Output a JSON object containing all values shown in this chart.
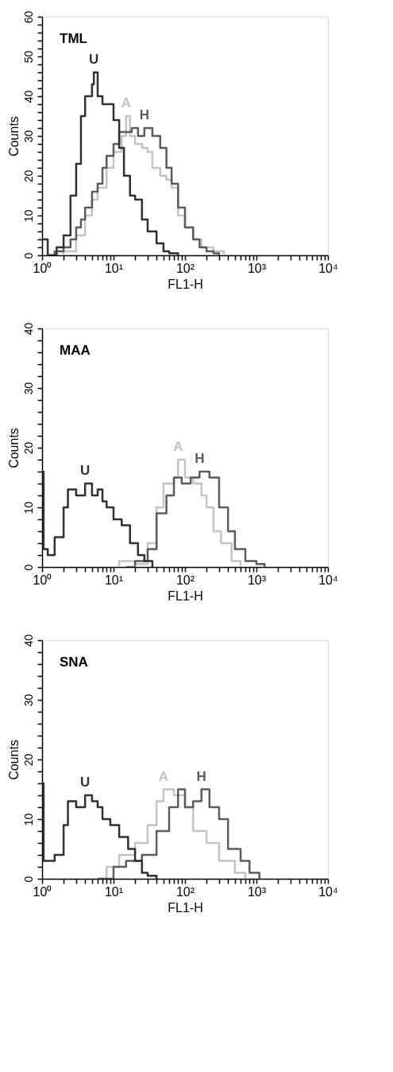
{
  "chart_data": [
    {
      "type": "step",
      "title": "TML",
      "xlabel": "FL1-H",
      "ylabel": "Counts",
      "log": "x",
      "grid": false,
      "xlim": [
        1,
        10000
      ],
      "ylim": [
        0,
        60
      ],
      "xticks": [
        {
          "value": 1,
          "label": "10⁰"
        },
        {
          "value": 2,
          "label": null
        },
        {
          "value": 3,
          "label": null
        },
        {
          "value": 4,
          "label": null
        },
        {
          "value": 5,
          "label": null
        },
        {
          "value": 6,
          "label": null
        },
        {
          "value": 7,
          "label": null
        },
        {
          "value": 8,
          "label": null
        },
        {
          "value": 9,
          "label": null
        },
        {
          "value": 10,
          "label": "10¹"
        },
        {
          "value": 20,
          "label": null
        },
        {
          "value": 30,
          "label": null
        },
        {
          "value": 40,
          "label": null
        },
        {
          "value": 50,
          "label": null
        },
        {
          "value": 60,
          "label": null
        },
        {
          "value": 70,
          "label": null
        },
        {
          "value": 80,
          "label": null
        },
        {
          "value": 90,
          "label": null
        },
        {
          "value": 100,
          "label": "10²"
        },
        {
          "value": 200,
          "label": null
        },
        {
          "value": 300,
          "label": null
        },
        {
          "value": 400,
          "label": null
        },
        {
          "value": 500,
          "label": null
        },
        {
          "value": 600,
          "label": null
        },
        {
          "value": 700,
          "label": null
        },
        {
          "value": 800,
          "label": null
        },
        {
          "value": 900,
          "label": null
        },
        {
          "value": 1000,
          "label": "10³"
        },
        {
          "value": 2000,
          "label": null
        },
        {
          "value": 3000,
          "label": null
        },
        {
          "value": 4000,
          "label": null
        },
        {
          "value": 5000,
          "label": null
        },
        {
          "value": 6000,
          "label": null
        },
        {
          "value": 7000,
          "label": null
        },
        {
          "value": 8000,
          "label": null
        },
        {
          "value": 9000,
          "label": null
        },
        {
          "value": 10000,
          "label": "10⁴"
        }
      ],
      "yticks": [
        0,
        {
          "value": 2,
          "label": null
        },
        {
          "value": 4,
          "label": null
        },
        {
          "value": 6,
          "label": null
        },
        {
          "value": 8,
          "label": null
        },
        10,
        {
          "value": 12,
          "label": null
        },
        {
          "value": 14,
          "label": null
        },
        {
          "value": 16,
          "label": null
        },
        {
          "value": 18,
          "label": null
        },
        20,
        {
          "value": 22,
          "label": null
        },
        {
          "value": 24,
          "label": null
        },
        {
          "value": 26,
          "label": null
        },
        {
          "value": 28,
          "label": null
        },
        30,
        {
          "value": 32,
          "label": null
        },
        {
          "value": 34,
          "label": null
        },
        {
          "value": 36,
          "label": null
        },
        {
          "value": 38,
          "label": null
        },
        40,
        {
          "value": 42,
          "label": null
        },
        {
          "value": 44,
          "label": null
        },
        {
          "value": 46,
          "label": null
        },
        {
          "value": 48,
          "label": null
        },
        50,
        {
          "value": 52,
          "label": null
        },
        {
          "value": 54,
          "label": null
        },
        {
          "value": 56,
          "label": null
        },
        {
          "value": 58,
          "label": null
        },
        60
      ],
      "series": [
        {
          "name": "A",
          "color": "#c4c4c4",
          "x": [
            1.5,
            2,
            3,
            4,
            5,
            6,
            8,
            10,
            13,
            15,
            17,
            20,
            25,
            30,
            35,
            45,
            55,
            65,
            80,
            100,
            130,
            170,
            250,
            350
          ],
          "values": [
            0,
            1,
            5,
            10,
            14,
            17,
            22,
            26,
            30,
            35,
            30,
            28,
            27,
            26,
            22,
            20,
            19,
            17,
            10,
            7,
            4,
            2,
            1,
            0
          ]
        },
        {
          "name": "H",
          "color": "#5c5c5c",
          "x": [
            1.2,
            1.5,
            2,
            2.5,
            3,
            3.5,
            4,
            5,
            6,
            7,
            8,
            10,
            12,
            15,
            18,
            22,
            27,
            35,
            45,
            55,
            65,
            80,
            100,
            130,
            160,
            200,
            250,
            300
          ],
          "values": [
            0,
            1,
            2,
            4,
            7,
            9,
            12,
            16,
            18,
            22,
            25,
            28,
            31,
            31,
            32,
            30,
            32,
            30,
            27,
            22,
            18,
            12,
            7,
            4,
            2,
            1,
            0.5,
            0
          ]
        },
        {
          "name": "U",
          "color": "#303030",
          "x": [
            1,
            1.2,
            1.6,
            2,
            2.5,
            3,
            3.5,
            4,
            5,
            5.3,
            6,
            7,
            8,
            10,
            12,
            14,
            17,
            20,
            25,
            30,
            40,
            50,
            60,
            80
          ],
          "values": [
            4,
            0,
            2,
            5,
            15,
            23,
            35,
            40,
            43,
            46,
            40,
            38,
            38,
            34,
            27,
            20,
            15,
            14,
            9,
            6,
            3,
            1,
            0.5,
            0
          ]
        }
      ]
    },
    {
      "type": "step",
      "title": "MAA",
      "xlabel": "FL1-H",
      "ylabel": "Counts",
      "log": "x",
      "grid": false,
      "xlim": [
        1,
        10000
      ],
      "ylim": [
        0,
        40
      ],
      "xticks": [
        {
          "value": 1,
          "label": "10⁰"
        },
        {
          "value": 2,
          "label": null
        },
        {
          "value": 3,
          "label": null
        },
        {
          "value": 4,
          "label": null
        },
        {
          "value": 5,
          "label": null
        },
        {
          "value": 6,
          "label": null
        },
        {
          "value": 7,
          "label": null
        },
        {
          "value": 8,
          "label": null
        },
        {
          "value": 9,
          "label": null
        },
        {
          "value": 10,
          "label": "10¹"
        },
        {
          "value": 20,
          "label": null
        },
        {
          "value": 30,
          "label": null
        },
        {
          "value": 40,
          "label": null
        },
        {
          "value": 50,
          "label": null
        },
        {
          "value": 60,
          "label": null
        },
        {
          "value": 70,
          "label": null
        },
        {
          "value": 80,
          "label": null
        },
        {
          "value": 90,
          "label": null
        },
        {
          "value": 100,
          "label": "10²"
        },
        {
          "value": 200,
          "label": null
        },
        {
          "value": 300,
          "label": null
        },
        {
          "value": 400,
          "label": null
        },
        {
          "value": 500,
          "label": null
        },
        {
          "value": 600,
          "label": null
        },
        {
          "value": 700,
          "label": null
        },
        {
          "value": 800,
          "label": null
        },
        {
          "value": 900,
          "label": null
        },
        {
          "value": 1000,
          "label": "10³"
        },
        {
          "value": 2000,
          "label": null
        },
        {
          "value": 3000,
          "label": null
        },
        {
          "value": 4000,
          "label": null
        },
        {
          "value": 5000,
          "label": null
        },
        {
          "value": 6000,
          "label": null
        },
        {
          "value": 7000,
          "label": null
        },
        {
          "value": 8000,
          "label": null
        },
        {
          "value": 9000,
          "label": null
        },
        {
          "value": 10000,
          "label": "10⁴"
        }
      ],
      "yticks": [
        0,
        {
          "value": 2,
          "label": null
        },
        {
          "value": 4,
          "label": null
        },
        {
          "value": 6,
          "label": null
        },
        {
          "value": 8,
          "label": null
        },
        10,
        {
          "value": 12,
          "label": null
        },
        {
          "value": 14,
          "label": null
        },
        {
          "value": 16,
          "label": null
        },
        {
          "value": 18,
          "label": null
        },
        20,
        {
          "value": 22,
          "label": null
        },
        {
          "value": 24,
          "label": null
        },
        {
          "value": 26,
          "label": null
        },
        {
          "value": 28,
          "label": null
        },
        30,
        {
          "value": 32,
          "label": null
        },
        {
          "value": 34,
          "label": null
        },
        {
          "value": 36,
          "label": null
        },
        {
          "value": 38,
          "label": null
        },
        40
      ],
      "series": [
        {
          "name": "A",
          "color": "#c4c4c4",
          "x": [
            10,
            12,
            20,
            30,
            40,
            50,
            70,
            80,
            100,
            130,
            170,
            200,
            250,
            320,
            450,
            600
          ],
          "values": [
            0,
            1,
            0.5,
            4,
            10,
            14,
            15,
            18,
            15,
            14,
            12,
            10,
            6,
            4,
            1,
            0
          ]
        },
        {
          "name": "H",
          "color": "#5c5c5c",
          "x": [
            15,
            20,
            30,
            40,
            55,
            70,
            90,
            120,
            160,
            220,
            300,
            400,
            500,
            700,
            1000,
            1300
          ],
          "values": [
            0,
            1,
            3,
            9,
            12,
            15,
            14,
            15,
            16,
            15,
            10,
            6,
            3,
            1,
            0.5,
            0
          ]
        },
        {
          "name": "U",
          "color": "#303030",
          "x": [
            1,
            1.05,
            1.2,
            1.5,
            2,
            2.3,
            3,
            4,
            5,
            6,
            7,
            8,
            10,
            13,
            17,
            22,
            27,
            35
          ],
          "values": [
            16,
            3,
            2,
            5,
            10,
            13,
            12,
            14,
            12,
            13,
            11,
            10,
            8,
            7,
            4,
            2,
            1,
            0
          ]
        }
      ]
    },
    {
      "type": "step",
      "title": "SNA",
      "xlabel": "FL1-H",
      "ylabel": "Counts",
      "log": "x",
      "grid": false,
      "xlim": [
        1,
        10000
      ],
      "ylim": [
        0,
        40
      ],
      "xticks": [
        {
          "value": 1,
          "label": "10⁰"
        },
        {
          "value": 2,
          "label": null
        },
        {
          "value": 3,
          "label": null
        },
        {
          "value": 4,
          "label": null
        },
        {
          "value": 5,
          "label": null
        },
        {
          "value": 6,
          "label": null
        },
        {
          "value": 7,
          "label": null
        },
        {
          "value": 8,
          "label": null
        },
        {
          "value": 9,
          "label": null
        },
        {
          "value": 10,
          "label": "10¹"
        },
        {
          "value": 20,
          "label": null
        },
        {
          "value": 30,
          "label": null
        },
        {
          "value": 40,
          "label": null
        },
        {
          "value": 50,
          "label": null
        },
        {
          "value": 60,
          "label": null
        },
        {
          "value": 70,
          "label": null
        },
        {
          "value": 80,
          "label": null
        },
        {
          "value": 90,
          "label": null
        },
        {
          "value": 100,
          "label": "10²"
        },
        {
          "value": 200,
          "label": null
        },
        {
          "value": 300,
          "label": null
        },
        {
          "value": 400,
          "label": null
        },
        {
          "value": 500,
          "label": null
        },
        {
          "value": 600,
          "label": null
        },
        {
          "value": 700,
          "label": null
        },
        {
          "value": 800,
          "label": null
        },
        {
          "value": 900,
          "label": null
        },
        {
          "value": 1000,
          "label": "10³"
        },
        {
          "value": 2000,
          "label": null
        },
        {
          "value": 3000,
          "label": null
        },
        {
          "value": 4000,
          "label": null
        },
        {
          "value": 5000,
          "label": null
        },
        {
          "value": 6000,
          "label": null
        },
        {
          "value": 7000,
          "label": null
        },
        {
          "value": 8000,
          "label": null
        },
        {
          "value": 9000,
          "label": null
        },
        {
          "value": 10000,
          "label": "10⁴"
        }
      ],
      "yticks": [
        0,
        {
          "value": 2,
          "label": null
        },
        {
          "value": 4,
          "label": null
        },
        {
          "value": 6,
          "label": null
        },
        {
          "value": 8,
          "label": null
        },
        10,
        {
          "value": 12,
          "label": null
        },
        {
          "value": 14,
          "label": null
        },
        {
          "value": 16,
          "label": null
        },
        {
          "value": 18,
          "label": null
        },
        20,
        {
          "value": 22,
          "label": null
        },
        {
          "value": 24,
          "label": null
        },
        {
          "value": 26,
          "label": null
        },
        {
          "value": 28,
          "label": null
        },
        30,
        {
          "value": 32,
          "label": null
        },
        {
          "value": 34,
          "label": null
        },
        {
          "value": 36,
          "label": null
        },
        {
          "value": 38,
          "label": null
        },
        40
      ],
      "series": [
        {
          "name": "A",
          "color": "#c4c4c4",
          "x": [
            5,
            8,
            12,
            20,
            30,
            40,
            50,
            70,
            100,
            130,
            200,
            300,
            500,
            700
          ],
          "values": [
            0,
            2,
            4,
            6,
            9,
            13,
            15,
            14,
            12,
            8,
            6,
            3,
            1,
            0
          ]
        },
        {
          "name": "H",
          "color": "#5c5c5c",
          "x": [
            6,
            10,
            15,
            25,
            40,
            60,
            80,
            100,
            130,
            170,
            220,
            300,
            400,
            600,
            800,
            1100
          ],
          "values": [
            0,
            2,
            3,
            4,
            8,
            12,
            15,
            12,
            13,
            15,
            12,
            10,
            5,
            3,
            1,
            0
          ]
        },
        {
          "name": "U",
          "color": "#303030",
          "x": [
            1,
            1.05,
            1.5,
            2,
            2.3,
            3,
            4,
            5,
            6,
            7,
            9,
            12,
            16,
            20,
            25,
            30,
            40
          ],
          "values": [
            16,
            3,
            4,
            9,
            13,
            12,
            14,
            13,
            12,
            10,
            9,
            7,
            5,
            3,
            1,
            0.5,
            0
          ]
        }
      ]
    }
  ]
}
